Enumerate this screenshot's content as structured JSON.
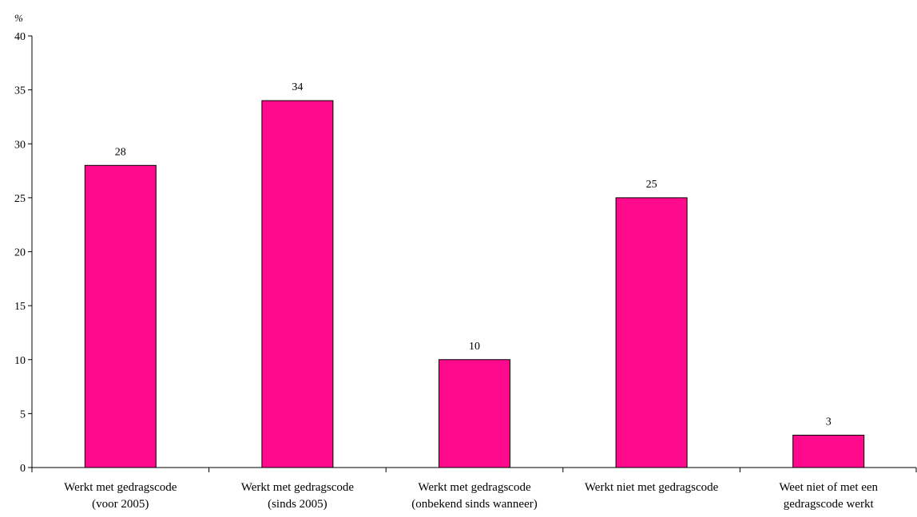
{
  "chart_data": {
    "type": "bar",
    "title": "",
    "xlabel": "",
    "ylabel": "%",
    "ylim": [
      0,
      40
    ],
    "yticks": [
      0,
      5,
      10,
      15,
      20,
      25,
      30,
      35,
      40
    ],
    "categories": [
      [
        "Werkt met gedragscode",
        "(voor 2005)"
      ],
      [
        "Werkt met gedragscode",
        "(sinds 2005)"
      ],
      [
        "Werkt met gedragscode",
        "(onbekend sinds wanneer)"
      ],
      [
        "Werkt niet met gedragscode"
      ],
      [
        "Weet niet of met een",
        "gedragscode werkt"
      ]
    ],
    "values": [
      28,
      34,
      10,
      25,
      3
    ],
    "data_labels": [
      "28",
      "34",
      "10",
      "25",
      "3"
    ],
    "grid": false,
    "legend": "none",
    "bar_color": "#FF0A8C"
  }
}
